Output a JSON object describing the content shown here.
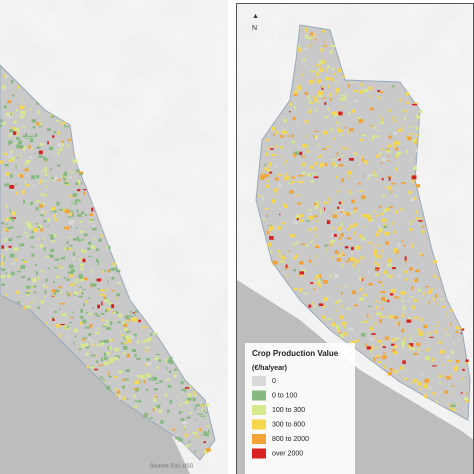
{
  "legend": {
    "title": "Crop Production Value",
    "unit": "(€/ha/year)",
    "items": [
      {
        "label": "0",
        "color": "#d9d9d9"
      },
      {
        "label": "0 to 100",
        "color": "#86b97f"
      },
      {
        "label": "100 to 300",
        "color": "#d6e98c"
      },
      {
        "label": "300 to 800",
        "color": "#f6d64c"
      },
      {
        "label": "800 to 2000",
        "color": "#f3a334"
      },
      {
        "label": "over 2000",
        "color": "#d8221f"
      }
    ]
  },
  "north": "N",
  "source": "Sources: Esri, USG"
}
